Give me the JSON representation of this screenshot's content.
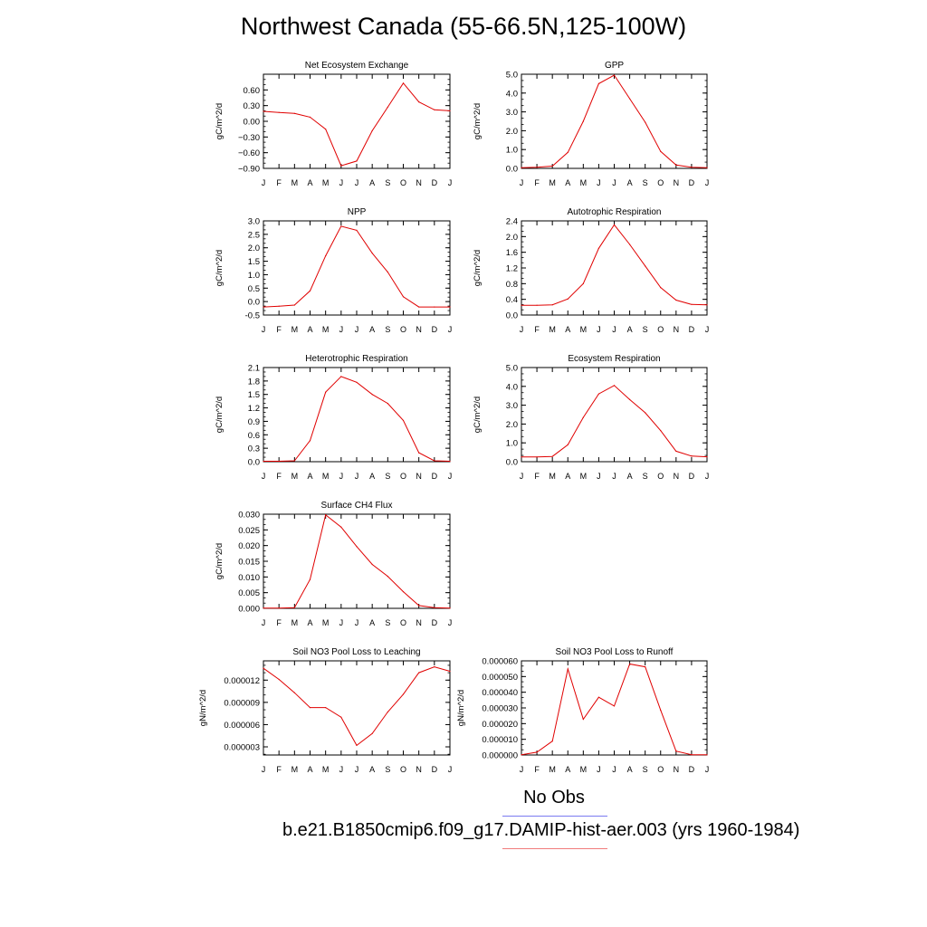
{
  "title": "Northwest Canada (55-66.5N,125-100W)",
  "legend": {
    "obs_label": "No Obs",
    "case_label": "b.e21.B1850cmip6.f09_g17.DAMIP-hist-aer.003 (yrs 1960-1984)",
    "obs_color": "#7b7bf0",
    "case_color": "#f07b7b"
  },
  "line_color": "#e00000",
  "chart_data": [
    {
      "type": "line",
      "title": "Net Ecosystem Exchange",
      "ylabel": "gC/m^2/d",
      "categories": [
        "J",
        "F",
        "M",
        "A",
        "M",
        "J",
        "J",
        "A",
        "S",
        "O",
        "N",
        "D",
        "J"
      ],
      "ylim": [
        -0.9,
        0.9
      ],
      "yticks": [
        -0.9,
        -0.6,
        -0.3,
        0.0,
        0.3,
        0.6
      ],
      "ytick_labels": [
        "−0.90",
        "−0.60",
        "−0.30",
        "0.00",
        "0.30",
        "0.60"
      ],
      "values": [
        0.19,
        0.17,
        0.15,
        0.08,
        -0.15,
        -0.85,
        -0.76,
        -0.18,
        0.27,
        0.73,
        0.37,
        0.22,
        0.2
      ]
    },
    {
      "type": "line",
      "title": "GPP",
      "ylabel": "gC/m^2/d",
      "categories": [
        "J",
        "F",
        "M",
        "A",
        "M",
        "J",
        "J",
        "A",
        "S",
        "O",
        "N",
        "D",
        "J"
      ],
      "ylim": [
        0,
        5
      ],
      "yticks": [
        0,
        1,
        2,
        3,
        4,
        5
      ],
      "ytick_labels": [
        "0.0",
        "1.0",
        "2.0",
        "3.0",
        "4.0",
        "5.0"
      ],
      "values": [
        0.04,
        0.06,
        0.12,
        0.85,
        2.5,
        4.5,
        4.95,
        3.7,
        2.45,
        0.9,
        0.18,
        0.06,
        0.04
      ]
    },
    {
      "type": "line",
      "title": "NPP",
      "ylabel": "gC/m^2/d",
      "categories": [
        "J",
        "F",
        "M",
        "A",
        "M",
        "J",
        "J",
        "A",
        "S",
        "O",
        "N",
        "D",
        "J"
      ],
      "ylim": [
        -0.5,
        3.0
      ],
      "yticks": [
        -0.5,
        0.0,
        0.5,
        1.0,
        1.5,
        2.0,
        2.5,
        3.0
      ],
      "ytick_labels": [
        "-0.5",
        "0.0",
        "0.5",
        "1.0",
        "1.5",
        "2.0",
        "2.5",
        "3.0"
      ],
      "values": [
        -0.2,
        -0.17,
        -0.13,
        0.4,
        1.7,
        2.8,
        2.65,
        1.8,
        1.1,
        0.18,
        -0.2,
        -0.2,
        -0.2
      ]
    },
    {
      "type": "line",
      "title": "Autotrophic Respiration",
      "ylabel": "gC/m^2/d",
      "categories": [
        "J",
        "F",
        "M",
        "A",
        "M",
        "J",
        "J",
        "A",
        "S",
        "O",
        "N",
        "D",
        "J"
      ],
      "ylim": [
        0,
        2.4
      ],
      "yticks": [
        0,
        0.4,
        0.8,
        1.2,
        1.6,
        2.0,
        2.4
      ],
      "ytick_labels": [
        "0.0",
        "0.4",
        "0.8",
        "1.2",
        "1.6",
        "2.0",
        "2.4"
      ],
      "values": [
        0.25,
        0.25,
        0.26,
        0.41,
        0.8,
        1.7,
        2.3,
        1.8,
        1.25,
        0.7,
        0.38,
        0.27,
        0.26
      ]
    },
    {
      "type": "line",
      "title": "Heterotrophic Respiration",
      "ylabel": "gC/m^2/d",
      "categories": [
        "J",
        "F",
        "M",
        "A",
        "M",
        "J",
        "J",
        "A",
        "S",
        "O",
        "N",
        "D",
        "J"
      ],
      "ylim": [
        0,
        2.1
      ],
      "yticks": [
        0,
        0.3,
        0.6,
        0.9,
        1.2,
        1.5,
        1.8,
        2.1
      ],
      "ytick_labels": [
        "0.0",
        "0.3",
        "0.6",
        "0.9",
        "1.2",
        "1.5",
        "1.8",
        "2.1"
      ],
      "values": [
        0.01,
        0.01,
        0.02,
        0.47,
        1.55,
        1.9,
        1.77,
        1.5,
        1.3,
        0.92,
        0.2,
        0.02,
        0.01
      ]
    },
    {
      "type": "line",
      "title": "Ecosystem Respiration",
      "ylabel": "gC/m^2/d",
      "categories": [
        "J",
        "F",
        "M",
        "A",
        "M",
        "J",
        "J",
        "A",
        "S",
        "O",
        "N",
        "D",
        "J"
      ],
      "ylim": [
        0,
        5
      ],
      "yticks": [
        0,
        1,
        2,
        3,
        4,
        5
      ],
      "ytick_labels": [
        "0.0",
        "1.0",
        "2.0",
        "3.0",
        "4.0",
        "5.0"
      ],
      "values": [
        0.25,
        0.25,
        0.28,
        0.9,
        2.35,
        3.6,
        4.05,
        3.3,
        2.6,
        1.65,
        0.56,
        0.3,
        0.26
      ]
    },
    {
      "type": "line",
      "title": "Surface CH4 Flux",
      "ylabel": "gC/m^2/d",
      "categories": [
        "J",
        "F",
        "M",
        "A",
        "M",
        "J",
        "J",
        "A",
        "S",
        "O",
        "N",
        "D",
        "J"
      ],
      "ylim": [
        0,
        0.03
      ],
      "yticks": [
        0,
        0.005,
        0.01,
        0.015,
        0.02,
        0.025,
        0.03
      ],
      "ytick_labels": [
        "0.000",
        "0.005",
        "0.010",
        "0.015",
        "0.020",
        "0.025",
        "0.030"
      ],
      "values": [
        0.0001,
        0.0001,
        0.0002,
        0.0092,
        0.0298,
        0.0259,
        0.0197,
        0.014,
        0.0102,
        0.0053,
        0.0009,
        0.0002,
        0.0001
      ]
    },
    {
      "type": "line",
      "title": "Soil NO3 Pool Loss to Leaching",
      "ylabel": "gN/m^2/d",
      "categories": [
        "J",
        "F",
        "M",
        "A",
        "M",
        "J",
        "J",
        "A",
        "S",
        "O",
        "N",
        "D",
        "J"
      ],
      "ylim": [
        1.9e-06,
        1.46e-05
      ],
      "yticks": [
        3e-06,
        6e-06,
        9e-06,
        1.2e-05
      ],
      "ytick_labels": [
        "0.000003",
        "0.000006",
        "0.000009",
        "0.000012"
      ],
      "values": [
        1.36e-05,
        1.21e-05,
        1.03e-05,
        8.3e-06,
        8.3e-06,
        7e-06,
        3.2e-06,
        4.8e-06,
        7.7e-06,
        1.01e-05,
        1.3e-05,
        1.38e-05,
        1.32e-05
      ]
    },
    {
      "type": "line",
      "title": "Soil NO3 Pool Loss to Runoff",
      "ylabel": "gN/m^2/d",
      "categories": [
        "J",
        "F",
        "M",
        "A",
        "M",
        "J",
        "J",
        "A",
        "S",
        "O",
        "N",
        "D",
        "J"
      ],
      "ylim": [
        0,
        6e-05
      ],
      "yticks": [
        0,
        1e-05,
        2e-05,
        3e-05,
        4e-05,
        5e-05,
        6e-05
      ],
      "ytick_labels": [
        "0.000000",
        "0.000010",
        "0.000020",
        "0.000030",
        "0.000040",
        "0.000050",
        "0.000060"
      ],
      "values": [
        1e-07,
        1.8e-06,
        8.8e-06,
        5.48e-05,
        2.28e-05,
        3.68e-05,
        3.12e-05,
        5.8e-05,
        5.62e-05,
        2.85e-05,
        2.5e-06,
        2e-07,
        1e-07
      ]
    }
  ]
}
